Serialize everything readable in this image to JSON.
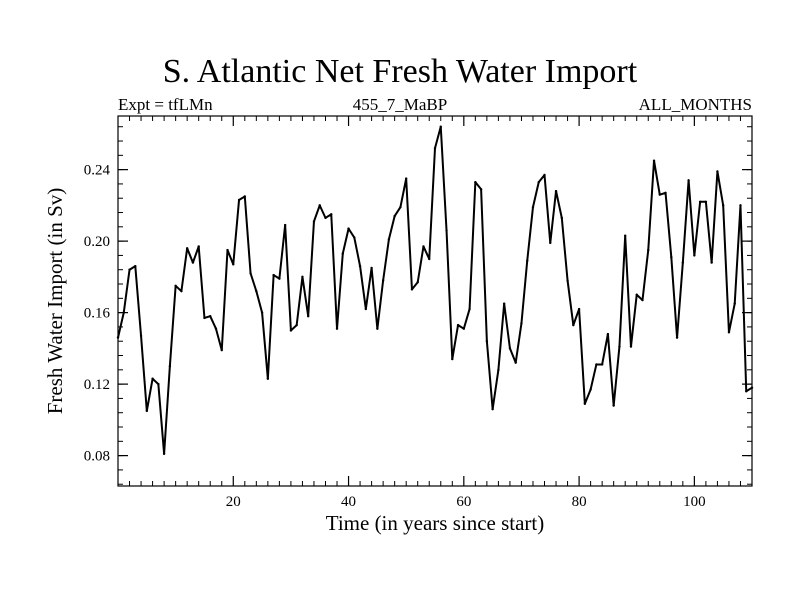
{
  "chart_data": {
    "type": "line",
    "title": "S. Atlantic Net Fresh Water Import",
    "subtitle_left": "Expt = tfLMn",
    "subtitle_center": "455_7_MaBP",
    "subtitle_right": "ALL_MONTHS",
    "xlabel": "Time (in years since start)",
    "ylabel": "Fresh Water Import (in Sv)",
    "xlim": [
      0,
      110
    ],
    "ylim": [
      0.063,
      0.27
    ],
    "xticks": [
      20,
      40,
      60,
      80,
      100
    ],
    "yticks": [
      0.08,
      0.12,
      0.16,
      0.2,
      0.24
    ],
    "ytick_labels": [
      "0.08",
      "0.12",
      "0.16",
      "0.20",
      "0.24"
    ],
    "grid": false,
    "series": [
      {
        "name": "fresh water import",
        "x": [
          0,
          1,
          2,
          3,
          4,
          5,
          6,
          7,
          8,
          9,
          10,
          11,
          12,
          13,
          14,
          15,
          16,
          17,
          18,
          19,
          20,
          21,
          22,
          23,
          24,
          25,
          26,
          27,
          28,
          29,
          30,
          31,
          32,
          33,
          34,
          35,
          36,
          37,
          38,
          39,
          40,
          41,
          42,
          43,
          44,
          45,
          46,
          47,
          48,
          49,
          50,
          51,
          52,
          53,
          54,
          55,
          56,
          57,
          58,
          59,
          60,
          61,
          62,
          63,
          64,
          65,
          66,
          67,
          68,
          69,
          70,
          71,
          72,
          73,
          74,
          75,
          76,
          77,
          78,
          79,
          80,
          81,
          82,
          83,
          84,
          85,
          86,
          87,
          88,
          89,
          90,
          91,
          92,
          93,
          94,
          95,
          96,
          97,
          98,
          99,
          100,
          101,
          102,
          103,
          104,
          105,
          106,
          107,
          108,
          109,
          110
        ],
        "values": [
          0.146,
          0.16,
          0.184,
          0.186,
          0.147,
          0.105,
          0.123,
          0.12,
          0.081,
          0.13,
          0.175,
          0.172,
          0.196,
          0.188,
          0.197,
          0.157,
          0.158,
          0.151,
          0.139,
          0.195,
          0.187,
          0.223,
          0.225,
          0.182,
          0.172,
          0.16,
          0.123,
          0.181,
          0.179,
          0.209,
          0.15,
          0.153,
          0.18,
          0.158,
          0.211,
          0.22,
          0.213,
          0.215,
          0.151,
          0.193,
          0.207,
          0.202,
          0.186,
          0.162,
          0.185,
          0.151,
          0.178,
          0.201,
          0.214,
          0.219,
          0.235,
          0.173,
          0.177,
          0.197,
          0.19,
          0.252,
          0.264,
          0.206,
          0.134,
          0.153,
          0.151,
          0.162,
          0.233,
          0.229,
          0.144,
          0.106,
          0.128,
          0.165,
          0.14,
          0.132,
          0.154,
          0.189,
          0.219,
          0.233,
          0.237,
          0.199,
          0.228,
          0.213,
          0.178,
          0.153,
          0.162,
          0.109,
          0.117,
          0.131,
          0.131,
          0.148,
          0.108,
          0.141,
          0.203,
          0.141,
          0.17,
          0.167,
          0.195,
          0.245,
          0.226,
          0.227,
          0.191,
          0.146,
          0.188,
          0.234,
          0.192,
          0.222,
          0.222,
          0.188,
          0.239,
          0.22,
          0.149,
          0.165,
          0.22,
          0.116,
          0.118
        ]
      }
    ]
  }
}
